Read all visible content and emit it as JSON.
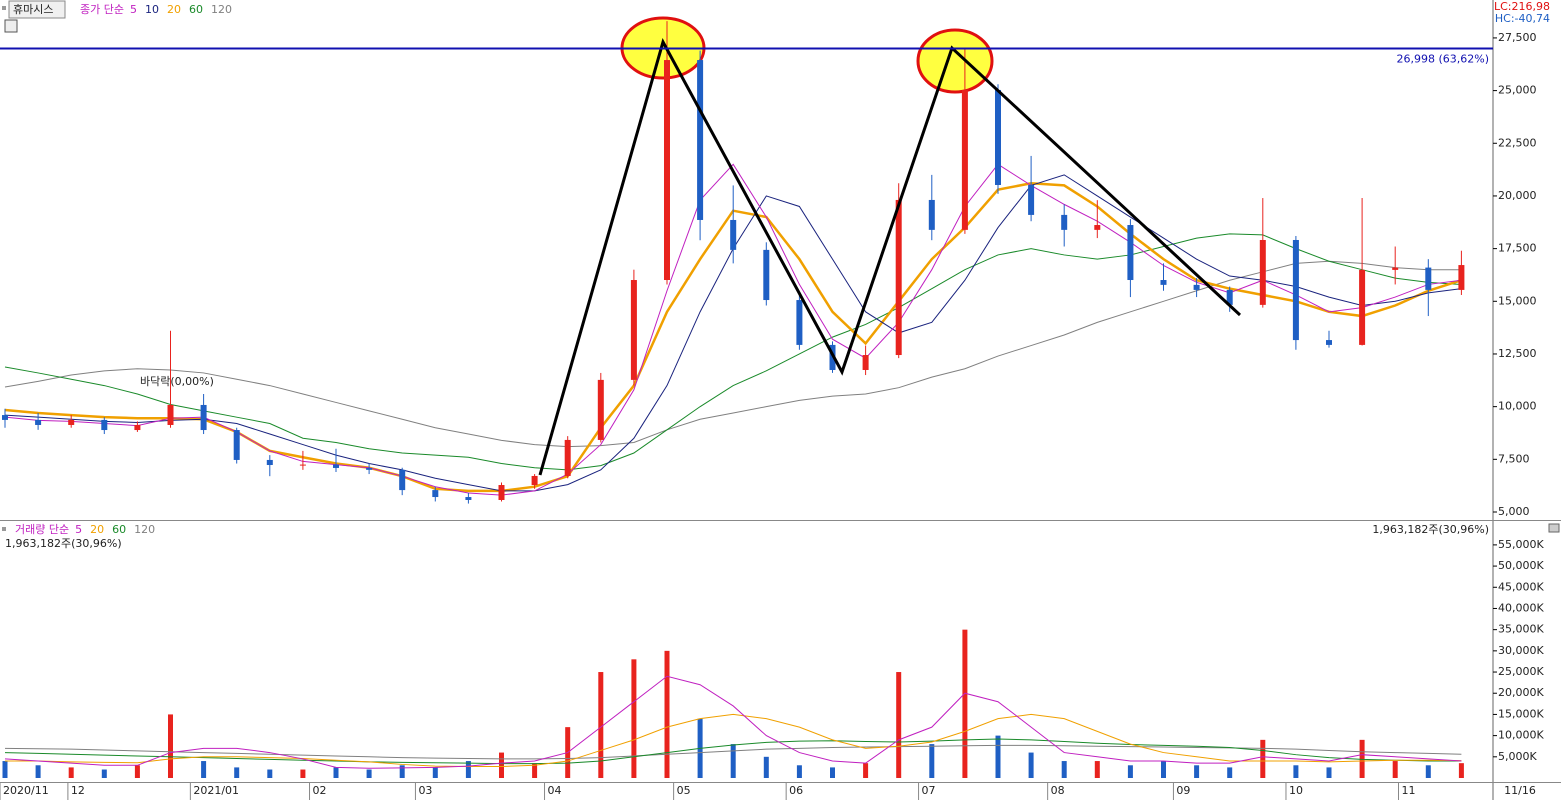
{
  "header": {
    "symbol": "휴마시스",
    "lc": "LC:216,98",
    "hc": "HC:-40,74",
    "date": "11/16"
  },
  "chart_data": [
    {
      "type": "candlestick",
      "legend_prefix": "종가 단순",
      "up_color": "#e8231e",
      "down_color": "#1f5fc4",
      "ylim": [
        4620,
        29300
      ],
      "yticks": [
        {
          "value": 5000,
          "label": "5,000"
        },
        {
          "value": 7500,
          "label": "7,500"
        },
        {
          "value": 10000,
          "label": "10,000"
        },
        {
          "value": 12500,
          "label": "12,500"
        },
        {
          "value": 15000,
          "label": "15,000"
        },
        {
          "value": 17500,
          "label": "17,500"
        },
        {
          "value": 20000,
          "label": "20,000"
        },
        {
          "value": 22500,
          "label": "22,500"
        },
        {
          "value": 25000,
          "label": "25,000"
        },
        {
          "value": 27500,
          "label": "27,500"
        }
      ],
      "open": [
        9600,
        9370,
        9130,
        9370,
        8890,
        9130,
        10080,
        8890,
        7470,
        7230,
        7250,
        7090,
        7000,
        6040,
        5710,
        5570,
        6280,
        6710,
        8420,
        11270,
        16010,
        26450,
        18860,
        17440,
        15060,
        12930,
        11740,
        12450,
        19810,
        18390,
        25030,
        20520,
        19100,
        18390,
        18620,
        16010,
        15780,
        15540,
        14830,
        17910,
        13160,
        12930,
        16490,
        16600,
        15540
      ],
      "high": [
        9900,
        9700,
        9600,
        9500,
        9300,
        13600,
        10600,
        9000,
        7700,
        7900,
        8000,
        7300,
        7100,
        6200,
        5900,
        6400,
        6800,
        8600,
        11600,
        16500,
        28300,
        26900,
        20500,
        17800,
        15300,
        13100,
        12900,
        20600,
        21000,
        27000,
        25300,
        21900,
        19600,
        19800,
        18900,
        16800,
        16100,
        15700,
        19900,
        18100,
        13600,
        19900,
        17600,
        17000,
        17400
      ],
      "low": [
        9000,
        8900,
        9000,
        8700,
        8800,
        9000,
        8700,
        7300,
        6700,
        7000,
        6900,
        6800,
        5800,
        5500,
        5400,
        5500,
        6100,
        6600,
        8300,
        11000,
        15800,
        17900,
        16800,
        14800,
        12700,
        11600,
        11500,
        12300,
        17900,
        18200,
        20100,
        18800,
        17600,
        18000,
        15200,
        15500,
        15200,
        14500,
        14700,
        12700,
        12800,
        12900,
        15800,
        14300,
        15300
      ],
      "close": [
        9370,
        9130,
        9370,
        8890,
        9130,
        10080,
        8890,
        7470,
        7230,
        7250,
        7090,
        7000,
        6040,
        5710,
        5570,
        6280,
        6710,
        8420,
        11270,
        16010,
        26450,
        18860,
        17440,
        15060,
        12930,
        11740,
        12450,
        19810,
        18390,
        25030,
        20520,
        19100,
        18390,
        18620,
        16010,
        15780,
        15540,
        14830,
        17910,
        13160,
        12930,
        16490,
        16600,
        15540,
        16720
      ],
      "series": [
        {
          "name": "5",
          "color": "#c020c0",
          "width": 1,
          "values": [
            9500,
            9350,
            9300,
            9200,
            9100,
            9450,
            9500,
            8800,
            7900,
            7400,
            7250,
            7100,
            6700,
            6200,
            5900,
            5800,
            6000,
            6800,
            8200,
            10800,
            15500,
            19800,
            21500,
            19000,
            15800,
            13200,
            12300,
            14000,
            16500,
            19500,
            21500,
            20500,
            19600,
            18800,
            17800,
            16700,
            15900,
            15400,
            16000,
            15300,
            14500,
            14700,
            15200,
            15800,
            16000
          ]
        },
        {
          "name": "10",
          "color": "#1a237e",
          "width": 1,
          "values": [
            9600,
            9500,
            9400,
            9300,
            9250,
            9350,
            9400,
            9200,
            8700,
            8200,
            7700,
            7300,
            7000,
            6600,
            6300,
            6000,
            6000,
            6300,
            7000,
            8500,
            11000,
            14500,
            17500,
            20000,
            19500,
            17000,
            14500,
            13500,
            14000,
            16000,
            18500,
            20500,
            21000,
            20000,
            19000,
            18000,
            17000,
            16200,
            16000,
            15700,
            15200,
            14800,
            15000,
            15400,
            15600
          ]
        },
        {
          "name": "20",
          "color": "#f0a000",
          "width": 2.5,
          "values": [
            9840,
            9700,
            9600,
            9500,
            9450,
            9450,
            9400,
            8800,
            7900,
            7600,
            7300,
            7100,
            6700,
            6100,
            6000,
            6000,
            6200,
            6700,
            9000,
            11000,
            14500,
            17000,
            19300,
            19000,
            17000,
            14500,
            13000,
            15000,
            17000,
            18500,
            20300,
            20600,
            20500,
            19500,
            18200,
            17000,
            16000,
            15600,
            15300,
            15000,
            14500,
            14300,
            14800,
            15500,
            16000
          ]
        },
        {
          "name": "60",
          "color": "#1a8a2a",
          "width": 1,
          "values": [
            11880,
            11600,
            11300,
            11000,
            10600,
            10100,
            9800,
            9500,
            9200,
            8500,
            8300,
            8000,
            7800,
            7700,
            7600,
            7300,
            7100,
            7000,
            7200,
            7800,
            8900,
            10000,
            11000,
            11700,
            12500,
            13300,
            13900,
            14700,
            15600,
            16500,
            17200,
            17500,
            17200,
            17000,
            17200,
            17600,
            18000,
            18200,
            18150,
            17500,
            16900,
            16500,
            16100,
            15900,
            15800
          ]
        },
        {
          "name": "120",
          "color": "#808080",
          "width": 1,
          "values": [
            10930,
            11200,
            11500,
            11700,
            11800,
            11740,
            11600,
            11300,
            11000,
            10600,
            10200,
            9800,
            9400,
            9000,
            8700,
            8400,
            8200,
            8100,
            8150,
            8300,
            8900,
            9400,
            9700,
            10000,
            10300,
            10500,
            10600,
            10900,
            11400,
            11800,
            12400,
            12900,
            13400,
            14000,
            14500,
            15000,
            15500,
            16000,
            16400,
            16800,
            16900,
            16800,
            16600,
            16500,
            16500
          ]
        }
      ],
      "hline": {
        "value": 26998,
        "label": "26,998 (63,62%)",
        "color": "#1010b0"
      },
      "annotation": "바닥락(0,00%)"
    },
    {
      "type": "volume",
      "legend_prefix": "거래량 단순",
      "ylim": [
        0,
        60400
      ],
      "yticks": [
        {
          "value": 5000,
          "label": "5,000K"
        },
        {
          "value": 10000,
          "label": "10,000K"
        },
        {
          "value": 15000,
          "label": "15,000K"
        },
        {
          "value": 20000,
          "label": "20,000K"
        },
        {
          "value": 25000,
          "label": "25,000K"
        },
        {
          "value": 30000,
          "label": "30,000K"
        },
        {
          "value": 35000,
          "label": "35,000K"
        },
        {
          "value": 40000,
          "label": "40,000K"
        },
        {
          "value": 45000,
          "label": "45,000K"
        },
        {
          "value": 50000,
          "label": "50,000K"
        },
        {
          "value": 55000,
          "label": "55,000K"
        }
      ],
      "xticks": [
        {
          "value": -0.15,
          "label": "2020/11"
        },
        {
          "value": 1.9,
          "label": "12"
        },
        {
          "value": 5.6,
          "label": "2021/01"
        },
        {
          "value": 9.2,
          "label": "02"
        },
        {
          "value": 12.4,
          "label": "03"
        },
        {
          "value": 16.3,
          "label": "04"
        },
        {
          "value": 20.2,
          "label": "05"
        },
        {
          "value": 23.6,
          "label": "06"
        },
        {
          "value": 27.6,
          "label": "07"
        },
        {
          "value": 31.5,
          "label": "08"
        },
        {
          "value": 35.3,
          "label": "09"
        },
        {
          "value": 38.7,
          "label": "10"
        },
        {
          "value": 42.1,
          "label": "11"
        }
      ],
      "values": [
        4000,
        3000,
        2500,
        2000,
        3000,
        15000,
        4000,
        2500,
        2000,
        2000,
        2500,
        2000,
        3000,
        2500,
        4000,
        6000,
        3500,
        12000,
        25000,
        28000,
        30000,
        14000,
        8000,
        5000,
        3000,
        2500,
        3500,
        25000,
        8000,
        35000,
        10000,
        6000,
        4000,
        4000,
        3000,
        4000,
        3000,
        2500,
        9000,
        3000,
        2500,
        9000,
        4000,
        3000,
        3500
      ],
      "series": [
        {
          "name": "5",
          "color": "#c020c0",
          "values": [
            4500,
            4000,
            3500,
            3000,
            3000,
            6000,
            7000,
            7000,
            6000,
            4500,
            2500,
            2300,
            2400,
            2500,
            2800,
            3500,
            4000,
            6000,
            12000,
            18000,
            24000,
            22000,
            17000,
            10000,
            6000,
            4000,
            3500,
            9000,
            12000,
            20000,
            18000,
            12000,
            6000,
            5000,
            4000,
            4000,
            3500,
            3500,
            5000,
            4500,
            4000,
            5500,
            5000,
            4500,
            4000
          ]
        },
        {
          "name": "20",
          "color": "#f0a000",
          "values": [
            4000,
            4000,
            3800,
            3700,
            3600,
            4500,
            5000,
            5000,
            4800,
            4600,
            4200,
            3800,
            3200,
            2800,
            2700,
            2700,
            3000,
            4000,
            6500,
            9000,
            12000,
            14000,
            15000,
            14000,
            12000,
            9000,
            7000,
            7500,
            8500,
            11000,
            14000,
            15000,
            14000,
            11000,
            8000,
            6000,
            5000,
            4000,
            4000,
            4000,
            3800,
            4000,
            4200,
            4200,
            4100
          ]
        },
        {
          "name": "60",
          "color": "#1a8a2a",
          "values": [
            6000,
            5800,
            5600,
            5400,
            5200,
            5000,
            4800,
            4600,
            4400,
            4200,
            4000,
            3800,
            3700,
            3600,
            3500,
            3400,
            3400,
            3500,
            4000,
            5000,
            6000,
            7000,
            7800,
            8400,
            8700,
            8800,
            8600,
            8500,
            8700,
            9000,
            9200,
            9000,
            8600,
            8200,
            7900,
            7700,
            7500,
            7200,
            6500,
            5500,
            4800,
            4400,
            4200,
            4000,
            4000
          ]
        },
        {
          "name": "120",
          "color": "#808080",
          "values": [
            7000,
            6900,
            6800,
            6600,
            6400,
            6200,
            6000,
            5800,
            5600,
            5400,
            5200,
            5000,
            4800,
            4700,
            4600,
            4500,
            4500,
            4600,
            4800,
            5200,
            5600,
            6000,
            6400,
            6800,
            7000,
            7200,
            7300,
            7400,
            7500,
            7600,
            7700,
            7700,
            7600,
            7500,
            7400,
            7300,
            7200,
            7100,
            7000,
            6800,
            6500,
            6200,
            6000,
            5800,
            5600
          ]
        }
      ],
      "annotation": "1,963,182주(30,96%)"
    }
  ]
}
